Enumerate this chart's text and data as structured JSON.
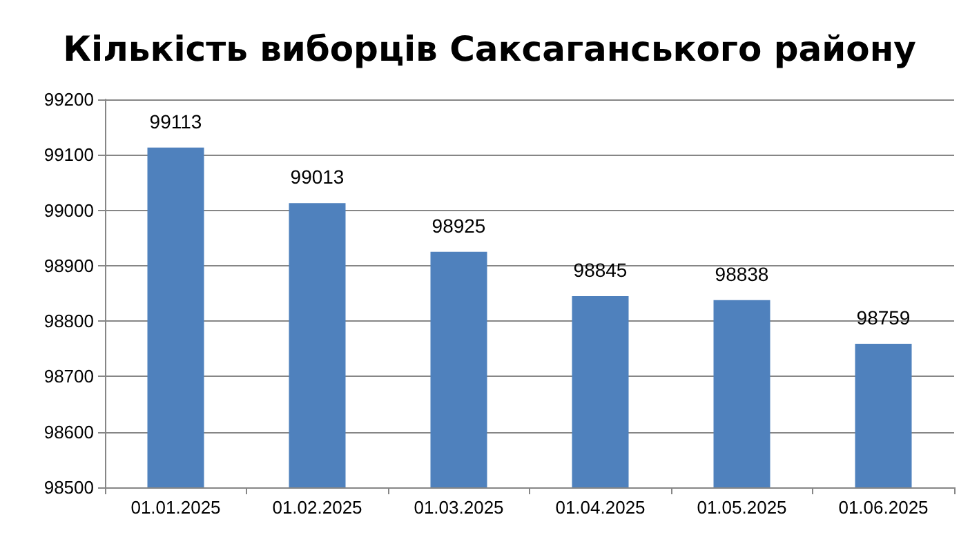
{
  "chart_data": {
    "type": "bar",
    "title": "Кількість виборців Саксаганського району",
    "categories": [
      "01.01.2025",
      "01.02.2025",
      "01.03.2025",
      "01.04.2025",
      "01.05.2025",
      "01.06.2025"
    ],
    "values": [
      99113,
      99013,
      98925,
      98845,
      98838,
      98759
    ],
    "color": "#4f81bd",
    "ylim": [
      98500,
      99200
    ],
    "yticks": [
      98500,
      98600,
      98700,
      98800,
      98900,
      99000,
      99100,
      99200
    ],
    "grid": "y",
    "data_labels": true
  }
}
